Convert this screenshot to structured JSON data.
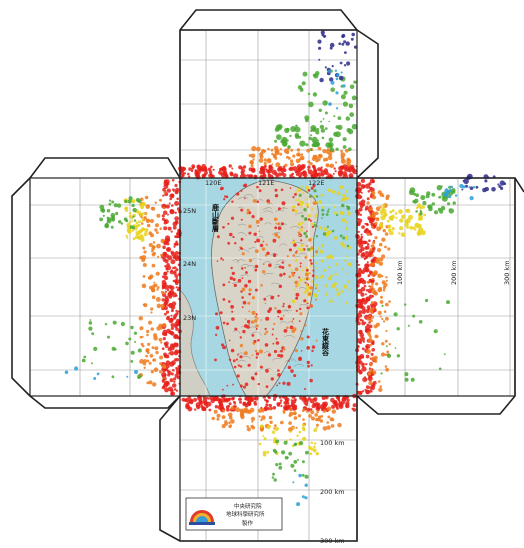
{
  "map": {
    "longitude_ticks": [
      "120E",
      "121E",
      "122E"
    ],
    "latitude_ticks": [
      "25N",
      "24N",
      "23N"
    ],
    "east_distance_ticks": [
      "100 km",
      "200 km",
      "300 km"
    ],
    "south_distance_ticks": [
      "100 km",
      "200 km",
      "300 km"
    ],
    "fault_label_west": "鹿山斷層",
    "fault_label_east": "花東縱谷",
    "logo": {
      "institution_line1": "中央研究院",
      "institution_line2": "地球科學研究所",
      "institution_line3": "製作"
    },
    "colors": {
      "shallow": "#e8201a",
      "mid_shallow": "#f07a1c",
      "mid": "#e8d21c",
      "mid_deep": "#4aa832",
      "deep": "#2aa0d8",
      "deepest": "#2b2a8a",
      "sea": "#a6d7e2"
    }
  }
}
